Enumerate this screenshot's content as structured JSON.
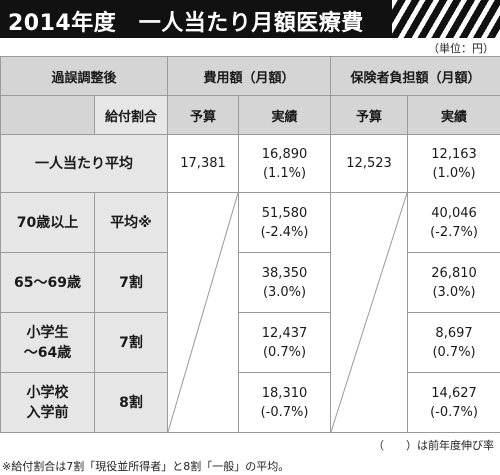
{
  "title": "2014年度　一人当たり月額医療費",
  "unit": "（単位：円）",
  "header": {
    "corner_top": "過誤調整後",
    "corner_bottom": "給付割合",
    "group_cost": "費用額（月額）",
    "group_burden": "保険者負担額（月額）",
    "budget": "予算",
    "actual": "実績"
  },
  "overall": {
    "label": "一人当たり平均",
    "cost_budget": "17,381",
    "cost_actual": "16,890",
    "cost_change": "(1.1%)",
    "burden_budget": "12,523",
    "burden_actual": "12,163",
    "burden_change": "(1.0%)"
  },
  "rows": [
    {
      "label1": "70歳以上",
      "label2": "",
      "ratio": "平均※",
      "cost_actual": "51,580",
      "cost_change": "(-2.4%)",
      "burden_actual": "40,046",
      "burden_change": "(-2.7%)"
    },
    {
      "label1": "65〜69歳",
      "label2": "",
      "ratio": "7割",
      "cost_actual": "38,350",
      "cost_change": "(3.0%)",
      "burden_actual": "26,810",
      "burden_change": "(3.0%)"
    },
    {
      "label1": "小学生",
      "label2": "〜64歳",
      "ratio": "7割",
      "cost_actual": "12,437",
      "cost_change": "(0.7%)",
      "burden_actual": "8,697",
      "burden_change": "(0.7%)"
    },
    {
      "label1": "小学校",
      "label2": "入学前",
      "ratio": "8割",
      "cost_actual": "18,310",
      "cost_change": "(-0.7%)",
      "burden_actual": "14,627",
      "burden_change": "(-0.7%)"
    }
  ],
  "legend": "（　　）は前年度伸び率",
  "footnote": "※給付割合は7割「現役並所得者」と8割「一般」の平均。"
}
